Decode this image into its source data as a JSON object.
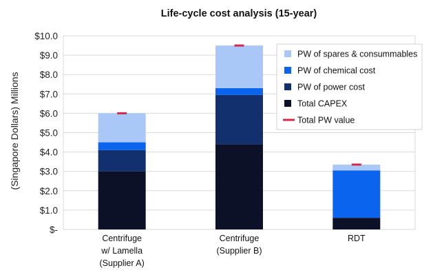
{
  "chart_data": {
    "type": "bar",
    "stacked": true,
    "title": "Life-cycle cost analysis (15-year)",
    "xlabel": "",
    "ylabel": "(Singapore Dollars) Millions",
    "ylim": [
      0,
      10
    ],
    "grid": true,
    "legend_position": "top-right",
    "y_tick_labels": [
      "$-",
      "$1.0",
      "$2.0",
      "$3.0",
      "$4.0",
      "$5.0",
      "$6.0",
      "$7.0",
      "$8.0",
      "$9.0",
      "$10.0"
    ],
    "categories": [
      [
        "Centrifuge",
        "w/ Lamella",
        "(Supplier A)"
      ],
      [
        "Centrifuge",
        "(Supplier B)"
      ],
      [
        "RDT"
      ]
    ],
    "series": [
      {
        "name": "Total CAPEX",
        "color": "#0d1128",
        "values": [
          3.0,
          4.4,
          0.6
        ]
      },
      {
        "name": "PW of power cost",
        "color": "#12306e",
        "values": [
          1.1,
          2.55,
          0.0
        ]
      },
      {
        "name": "PW of chemical cost",
        "color": "#0a64ee",
        "values": [
          0.4,
          0.35,
          2.45
        ]
      },
      {
        "name": "PW of spares & consummables",
        "color": "#a9c8f7",
        "values": [
          1.5,
          2.2,
          0.3
        ]
      }
    ],
    "total_line": {
      "name": "Total PW value",
      "color": "#d6284b",
      "values": [
        6.0,
        9.5,
        3.35
      ]
    },
    "legend_order": [
      "PW of spares & consummables",
      "PW of chemical cost",
      "PW of power cost",
      "Total CAPEX",
      "Total PW value"
    ]
  }
}
